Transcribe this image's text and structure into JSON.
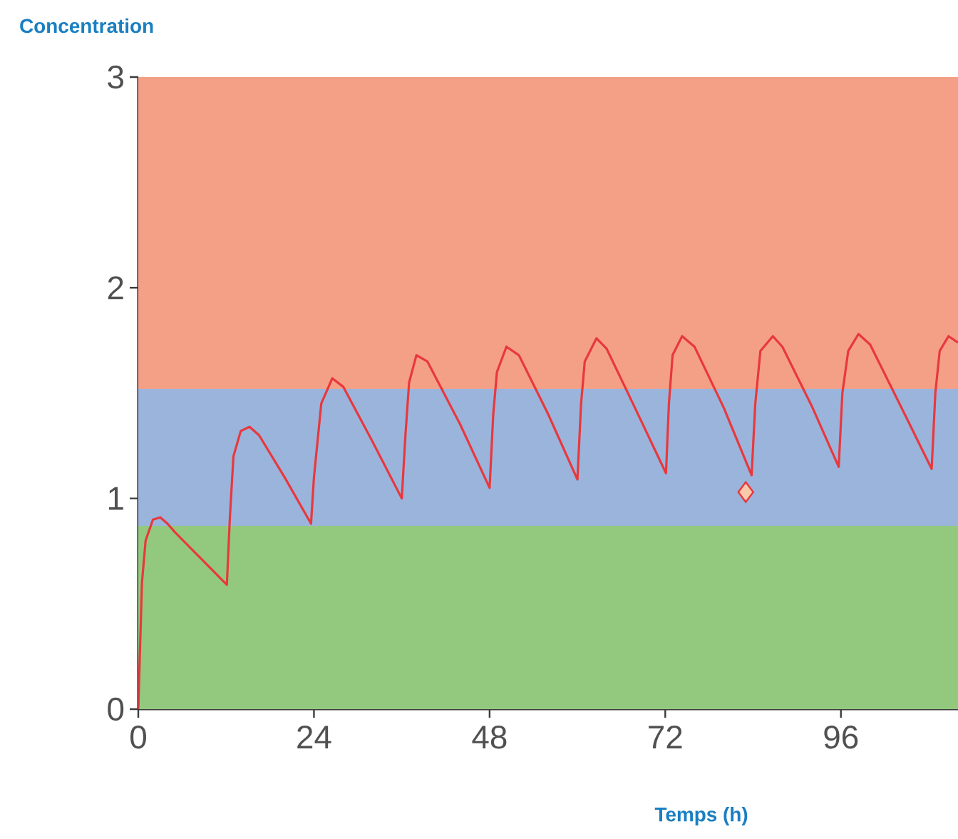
{
  "chart_data": {
    "type": "line",
    "xlabel": "Temps (h)",
    "ylabel": "Concentration",
    "xlim": [
      0,
      112
    ],
    "ylim": [
      0,
      3
    ],
    "xticks": [
      0,
      24,
      48,
      72,
      96
    ],
    "yticks": [
      0,
      1,
      2,
      3
    ],
    "grid": false,
    "line_style": "solid",
    "bands": [
      {
        "axis": "y",
        "from": 0,
        "to": 0.87,
        "color": "#93c97e"
      },
      {
        "axis": "y",
        "from": 0.87,
        "to": 1.52,
        "color": "#9bb4dc"
      },
      {
        "axis": "y",
        "from": 1.52,
        "to": 3,
        "color": "#f4a086"
      }
    ],
    "series": [
      {
        "color": "#e8383d",
        "x": [
          0,
          0.5,
          1,
          2,
          3,
          4,
          5,
          12.1,
          12.5,
          13,
          14,
          15.2,
          16.5,
          20,
          23.6,
          24,
          25,
          26.5,
          28,
          32,
          36,
          36.5,
          37,
          38,
          39.5,
          44,
          48,
          48.5,
          49,
          50.3,
          52,
          56,
          60,
          60.5,
          61,
          62.6,
          64,
          68,
          72.1,
          72.5,
          73,
          74.3,
          76,
          80,
          83.8,
          84.3,
          85,
          86.7,
          88,
          92,
          95.7,
          96.2,
          97,
          98.4,
          100,
          104,
          108.4,
          108.9,
          109.5,
          110.7,
          112
        ],
        "values": [
          0,
          0.6,
          0.8,
          0.9,
          0.91,
          0.88,
          0.84,
          0.59,
          0.9,
          1.2,
          1.32,
          1.34,
          1.3,
          1.1,
          0.88,
          1.1,
          1.45,
          1.57,
          1.53,
          1.27,
          1.0,
          1.3,
          1.55,
          1.68,
          1.65,
          1.35,
          1.05,
          1.4,
          1.6,
          1.72,
          1.68,
          1.4,
          1.09,
          1.45,
          1.65,
          1.76,
          1.71,
          1.42,
          1.12,
          1.45,
          1.68,
          1.77,
          1.72,
          1.43,
          1.11,
          1.45,
          1.7,
          1.77,
          1.72,
          1.44,
          1.15,
          1.5,
          1.7,
          1.78,
          1.73,
          1.45,
          1.14,
          1.5,
          1.7,
          1.77,
          1.74
        ]
      },
      {
        "type": "scatter",
        "color": "#e8383d",
        "marker": "diamond",
        "x": [
          83
        ],
        "values": [
          1.03
        ]
      }
    ]
  }
}
